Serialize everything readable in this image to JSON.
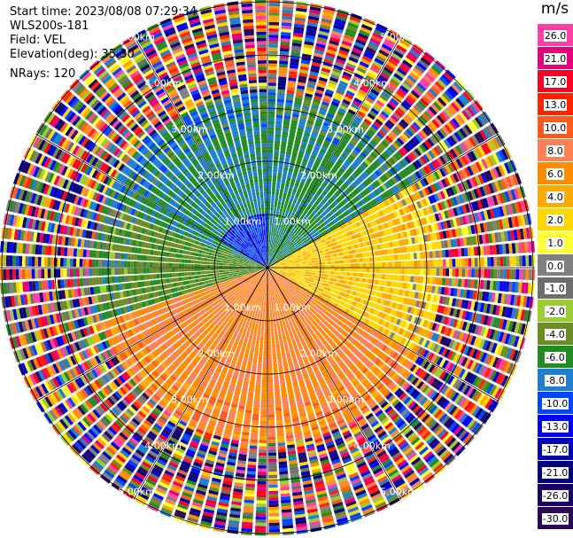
{
  "info": {
    "start_time": "Start time: 2023/08/08 07:29:34",
    "instrument": "WLS200s-181",
    "field": "Field: VEL",
    "elevation": "Elevation(deg): 35.30",
    "nrays": "NRays: 120"
  },
  "colorbar": {
    "unit": "m/s",
    "ticks": [
      "26.0",
      "21.0",
      "17.0",
      "13.0",
      "10.0",
      "8.0",
      "6.0",
      "4.0",
      "2.0",
      "1.0",
      "0.0",
      "-1.0",
      "-2.0",
      "-4.0",
      "-6.0",
      "-8.0",
      "-10.0",
      "-13.0",
      "-17.0",
      "-21.0",
      "-26.0",
      "-30.0"
    ],
    "colors": [
      "#ff3fa5",
      "#e6007a",
      "#ff0022",
      "#ff2400",
      "#ff5a1e",
      "#ff8052",
      "#ff8c00",
      "#ffaa00",
      "#ffd700",
      "#ffff33",
      "#808080",
      "#6e6e6e",
      "#9acd32",
      "#6b8e23",
      "#228b22",
      "#1e7fd0",
      "#0047ff",
      "#0000ff",
      "#0000b8",
      "#00007e",
      "#1a0066",
      "#2a0a55"
    ]
  },
  "chart_data": {
    "type": "ppi_polar",
    "field": "VEL",
    "units": "m/s",
    "nrays": 120,
    "range_rings_km": [
      1.0,
      2.0,
      3.0,
      4.0,
      5.0
    ],
    "ring_labels": [
      "1.00km",
      "2.00km",
      "3.00km",
      "4.00km",
      "5.00km"
    ],
    "max_range_km": 5.0,
    "levels": [
      -30.0,
      -26.0,
      -21.0,
      -17.0,
      -13.0,
      -10.0,
      -8.0,
      -6.0,
      -4.0,
      -2.0,
      -1.0,
      0.0,
      1.0,
      2.0,
      4.0,
      6.0,
      8.0,
      10.0,
      13.0,
      17.0,
      21.0,
      26.0
    ],
    "regions": [
      {
        "sector": "north-west",
        "range_km": [
          0.0,
          3.0
        ],
        "velocity_ms": -7.0
      },
      {
        "sector": "north",
        "range_km": [
          0.0,
          2.5
        ],
        "velocity_ms": -5.0
      },
      {
        "sector": "east",
        "range_km": [
          0.0,
          2.5
        ],
        "velocity_ms": 3.0
      },
      {
        "sector": "south",
        "range_km": [
          0.0,
          3.0
        ],
        "velocity_ms": 7.0
      },
      {
        "sector": "west",
        "range_km": [
          0.0,
          2.5
        ],
        "velocity_ms": -3.0
      },
      {
        "sector": "all",
        "range_km": [
          3.2,
          5.0
        ],
        "velocity_ms": "noise"
      }
    ],
    "grid": true
  }
}
